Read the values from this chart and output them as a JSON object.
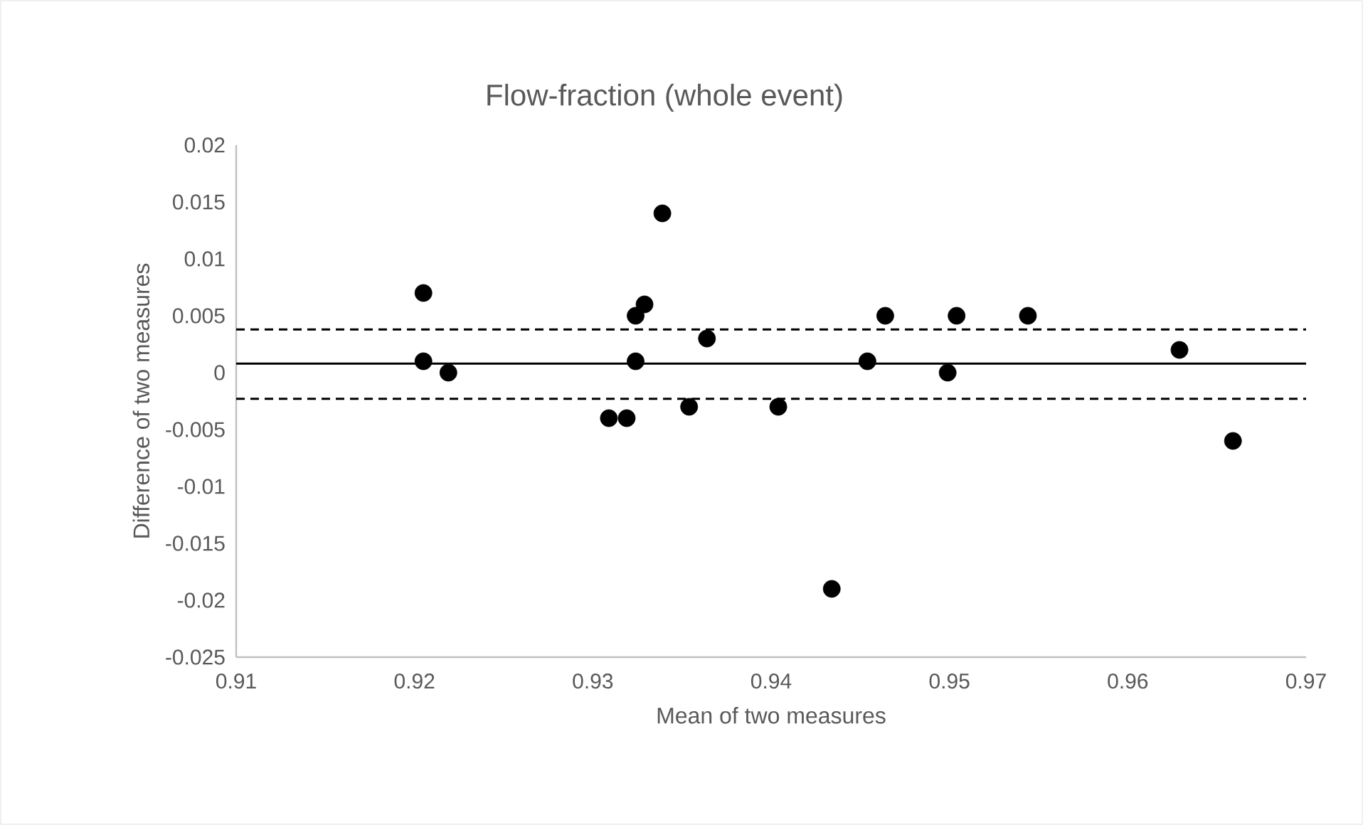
{
  "chart_data": {
    "type": "scatter",
    "title": "Flow-fraction (whole event)",
    "xlabel": "Mean of two measures",
    "ylabel": "Difference of two measures",
    "x": [
      0.9205,
      0.9205,
      0.9219,
      0.9309,
      0.9319,
      0.9324,
      0.9329,
      0.9324,
      0.9339,
      0.9354,
      0.9364,
      0.9404,
      0.9434,
      0.9454,
      0.9464,
      0.9499,
      0.9504,
      0.9544,
      0.9629,
      0.9659
    ],
    "values": [
      0.007,
      0.001,
      0,
      -0.004,
      -0.004,
      0.005,
      0.006,
      0.001,
      0.014,
      -0.003,
      0.003,
      -0.003,
      -0.019,
      0.001,
      0.005,
      0,
      0.005,
      0.005,
      0.002,
      -0.006
    ],
    "color": "#000000",
    "marker": "circle",
    "xlim": [
      0.91,
      0.97
    ],
    "xticks": [
      0.91,
      0.92,
      0.93,
      0.94,
      0.95,
      0.96,
      0.97
    ],
    "ylim": [
      -0.025,
      0.02
    ],
    "yticks": [
      -0.025,
      -0.02,
      -0.015,
      -0.01,
      -0.005,
      0,
      0.005,
      0.01,
      0.015,
      0.02
    ],
    "grid": false,
    "ref_lines": [
      {
        "axis": "y",
        "value": 0.0008,
        "color": "#000000",
        "line_style": "solid"
      },
      {
        "axis": "y",
        "value": 0.0038,
        "color": "#000000",
        "line_style": "dashed"
      },
      {
        "axis": "y",
        "value": -0.0023,
        "color": "#000000",
        "line_style": "dashed"
      }
    ]
  }
}
